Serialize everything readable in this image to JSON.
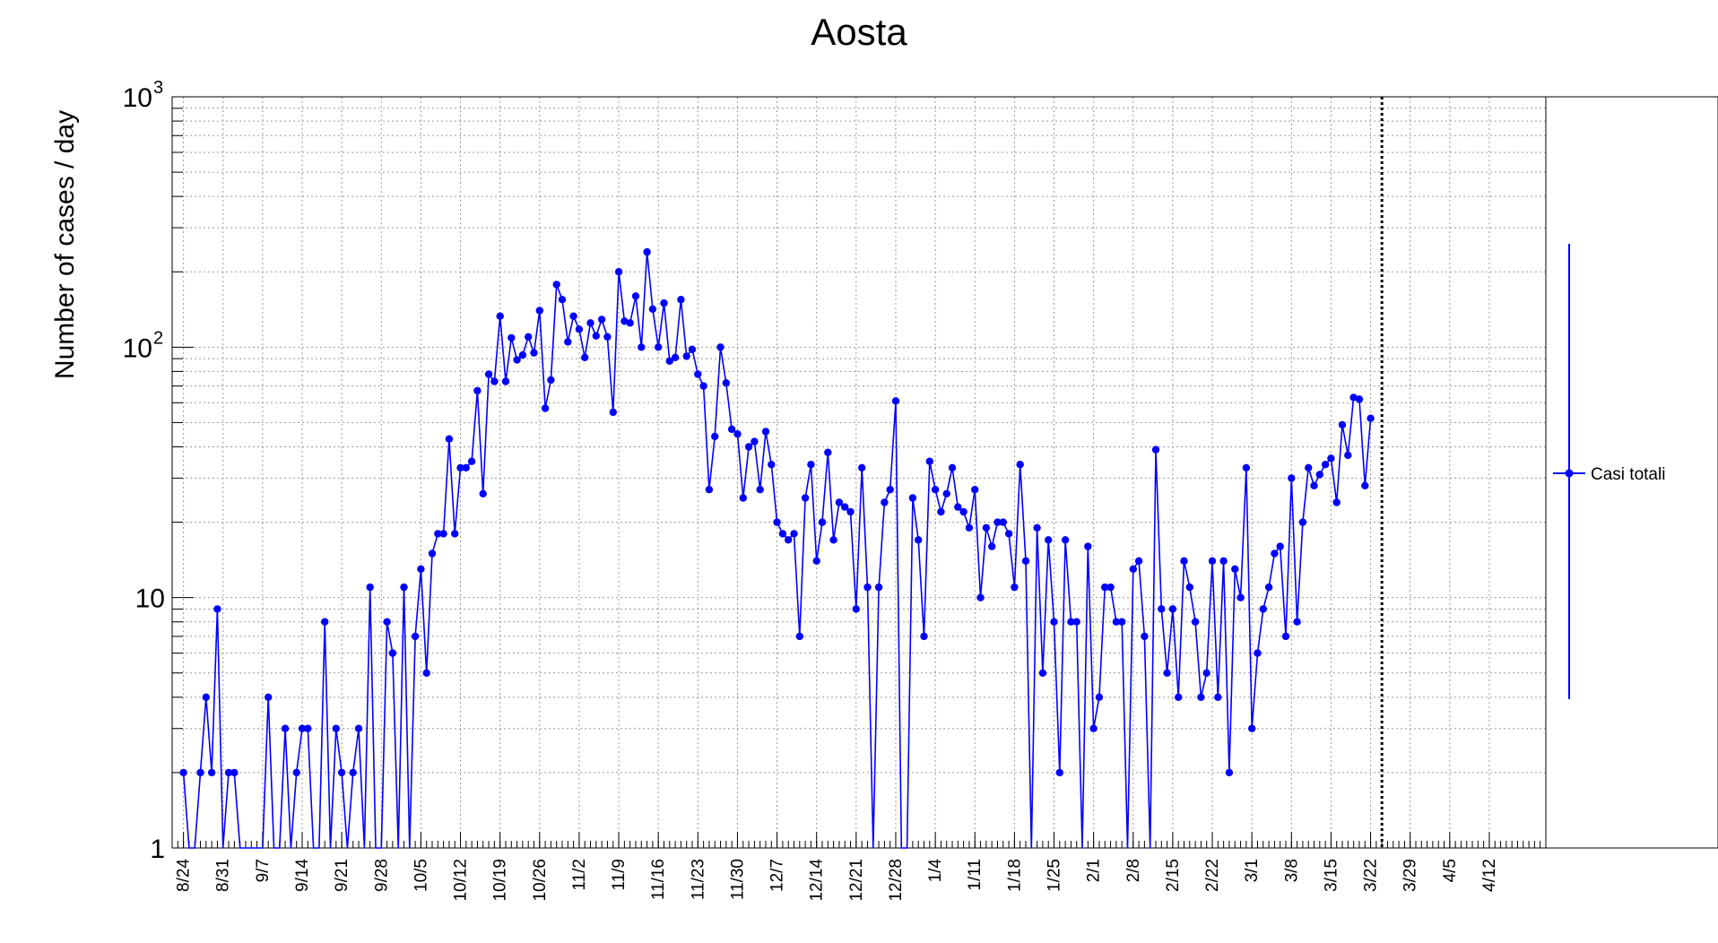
{
  "chart_data": {
    "type": "line",
    "title": "Aosta",
    "xlabel": "",
    "ylabel": "Number of cases / day",
    "y_scale": "log",
    "ylim": [
      1,
      1000
    ],
    "y_tick_labels": [
      "1",
      "10",
      "10",
      "10"
    ],
    "y_tick_exponents": [
      "",
      "",
      "2",
      "3"
    ],
    "grid": true,
    "legend_position": "right",
    "line_color": "#0000ff",
    "x_start_date": "8/22",
    "x_end_date": "4/22",
    "x_ticks": [
      {
        "label": "8/24",
        "day": 2
      },
      {
        "label": "8/31",
        "day": 9
      },
      {
        "label": "9/7",
        "day": 16
      },
      {
        "label": "9/14",
        "day": 23
      },
      {
        "label": "9/21",
        "day": 30
      },
      {
        "label": "9/28",
        "day": 37
      },
      {
        "label": "10/5",
        "day": 44
      },
      {
        "label": "10/12",
        "day": 51
      },
      {
        "label": "10/19",
        "day": 58
      },
      {
        "label": "10/26",
        "day": 65
      },
      {
        "label": "11/2",
        "day": 72
      },
      {
        "label": "11/9",
        "day": 79
      },
      {
        "label": "11/16",
        "day": 86
      },
      {
        "label": "11/23",
        "day": 93
      },
      {
        "label": "11/30",
        "day": 100
      },
      {
        "label": "12/7",
        "day": 107
      },
      {
        "label": "12/14",
        "day": 114
      },
      {
        "label": "12/21",
        "day": 121
      },
      {
        "label": "12/28",
        "day": 128
      },
      {
        "label": "1/4",
        "day": 135
      },
      {
        "label": "1/11",
        "day": 142
      },
      {
        "label": "1/18",
        "day": 149
      },
      {
        "label": "1/25",
        "day": 156
      },
      {
        "label": "2/1",
        "day": 163
      },
      {
        "label": "2/8",
        "day": 170
      },
      {
        "label": "2/15",
        "day": 177
      },
      {
        "label": "2/22",
        "day": 184
      },
      {
        "label": "3/1",
        "day": 191
      },
      {
        "label": "3/8",
        "day": 198
      },
      {
        "label": "3/15",
        "day": 205
      },
      {
        "label": "3/22",
        "day": 212
      },
      {
        "label": "3/29",
        "day": 219
      },
      {
        "label": "4/5",
        "day": 226
      },
      {
        "label": "4/12",
        "day": 233
      }
    ],
    "vertical_marker_day": 214,
    "series": [
      {
        "name": "Casi totali",
        "start_day": 2,
        "values": [
          2,
          0,
          0,
          2,
          4,
          2,
          9,
          0,
          2,
          2,
          0,
          0,
          0,
          0,
          0,
          4,
          0,
          0,
          3,
          0,
          2,
          3,
          3,
          0,
          0,
          8,
          0,
          3,
          2,
          0,
          2,
          3,
          0,
          11,
          0,
          0,
          8,
          6,
          0,
          11,
          0,
          7,
          13,
          5,
          15,
          18,
          18,
          43,
          18,
          33,
          33,
          35,
          67,
          26,
          78,
          73,
          133,
          73,
          109,
          89,
          93,
          110,
          95,
          140,
          57,
          74,
          178,
          155,
          105,
          133,
          118,
          91,
          125,
          111,
          129,
          110,
          55,
          200,
          127,
          125,
          160,
          100,
          240,
          142,
          100,
          150,
          88,
          91,
          155,
          92,
          98,
          78,
          70,
          27,
          44,
          100,
          72,
          47,
          45,
          25,
          40,
          42,
          27,
          46,
          34,
          20,
          18,
          17,
          18,
          7,
          25,
          34,
          14,
          20,
          38,
          17,
          24,
          23,
          22,
          9,
          33,
          11,
          0,
          11,
          24,
          27,
          61,
          0,
          0,
          25,
          17,
          7,
          35,
          27,
          22,
          26,
          33,
          23,
          22,
          19,
          27,
          10,
          19,
          16,
          20,
          20,
          18,
          11,
          34,
          14,
          0,
          19,
          5,
          17,
          8,
          2,
          17,
          8,
          8,
          0,
          16,
          3,
          4,
          11,
          11,
          8,
          8,
          0,
          13,
          14,
          7,
          0,
          39,
          9,
          5,
          9,
          4,
          14,
          11,
          8,
          4,
          5,
          14,
          4,
          14,
          2,
          13,
          10,
          33,
          3,
          6,
          9,
          11,
          15,
          16,
          7,
          30,
          8,
          20,
          33,
          28,
          31,
          34,
          36,
          24,
          49,
          37,
          63,
          62,
          28,
          52
        ]
      }
    ]
  }
}
